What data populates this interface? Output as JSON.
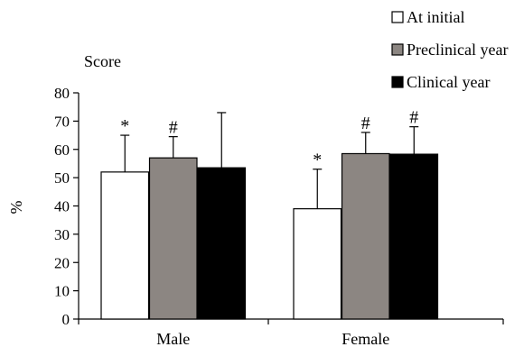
{
  "chart_data": {
    "type": "bar",
    "title": "Score",
    "ylabel": "%",
    "xlabel": "",
    "ylim": [
      0,
      80
    ],
    "yticks": [
      0,
      10,
      20,
      30,
      40,
      50,
      60,
      70,
      80
    ],
    "categories": [
      "Male",
      "Female"
    ],
    "series": [
      {
        "name": "At initial",
        "color": "#ffffff",
        "values": [
          52,
          39
        ],
        "error_upper": [
          65,
          53
        ],
        "markers": [
          "*",
          "*"
        ]
      },
      {
        "name": "Preclinical year",
        "color": "#8c8682",
        "values": [
          57,
          58.5
        ],
        "error_upper": [
          64.5,
          66
        ],
        "markers": [
          "#",
          "#"
        ]
      },
      {
        "name": "Clinical year",
        "color": "#000000",
        "values": [
          53.5,
          58.3
        ],
        "error_upper": [
          73,
          68
        ],
        "markers": [
          "",
          "#"
        ]
      }
    ],
    "legend_position": "top-right",
    "grid": false
  }
}
